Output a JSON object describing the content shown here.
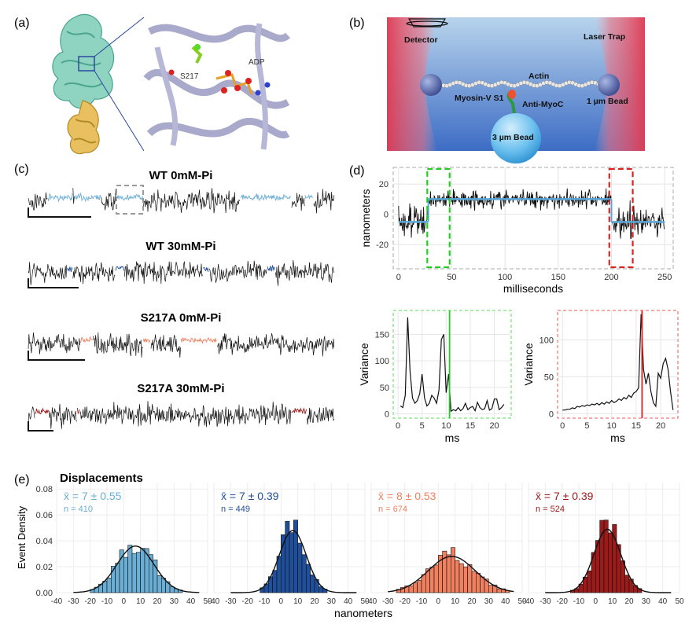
{
  "panels": {
    "a": {
      "label": "(a)",
      "ligand": "ADP",
      "residue": "S217"
    },
    "b": {
      "label": "(b)",
      "detector": "Detector",
      "laser_trap": "Laser Trap",
      "actin": "Actin",
      "myosin": "Myosin-V S1",
      "antibody": "Anti-MyoC",
      "small_bead": "1 µm Bead",
      "big_bead": "3 µm Bead"
    },
    "c": {
      "label": "(c)",
      "traces": [
        {
          "title": "WT 0mM-Pi",
          "color": "#6aaed6"
        },
        {
          "title": "WT 30mM-Pi",
          "color": "#1f4e9a"
        },
        {
          "title": "S217A 0mM-Pi",
          "color": "#f08060"
        },
        {
          "title": "S217A 30mM-Pi",
          "color": "#9c1a1a"
        }
      ]
    },
    "d": {
      "label": "(d)"
    },
    "e": {
      "label": "(e)",
      "title": "Displacements"
    }
  },
  "chart_data": [
    {
      "type": "line",
      "panel": "d-main",
      "xlabel": "milliseconds",
      "ylabel": "nanometers",
      "xticks": [
        0,
        50,
        100,
        150,
        200,
        250
      ],
      "yticks": [
        -20,
        0,
        20
      ],
      "xlim": [
        -5,
        258
      ],
      "ylim": [
        -36,
        31
      ],
      "grid": true,
      "fit_segments": [
        {
          "x": [
            0,
            28
          ],
          "y": -5
        },
        {
          "x": [
            28,
            200
          ],
          "y": 10
        },
        {
          "x": [
            200,
            250
          ],
          "y": -5
        }
      ],
      "highlight_boxes": [
        {
          "x": [
            27,
            48
          ],
          "color": "#22cc22"
        },
        {
          "x": [
            198,
            220
          ],
          "color": "#dd2222"
        }
      ]
    },
    {
      "type": "line",
      "panel": "d-variance-start",
      "xlabel": "ms",
      "ylabel": "Variance",
      "xticks": [
        0,
        5,
        10,
        15,
        20
      ],
      "yticks": [
        0,
        50,
        100,
        150
      ],
      "xlim": [
        -1,
        23.5
      ],
      "ylim": [
        -8,
        195
      ],
      "grid": true,
      "marker_x": 10.7,
      "marker_color": "#22cc22",
      "x": [
        0.5,
        1,
        1.5,
        2,
        2.5,
        3,
        3.5,
        4,
        4.5,
        5,
        5.5,
        6,
        6.5,
        7,
        7.5,
        8,
        8.5,
        9,
        9.5,
        10,
        10.5,
        11,
        11.5,
        12,
        12.5,
        13,
        13.5,
        14,
        14.5,
        15,
        15.5,
        16,
        16.5,
        17,
        17.5,
        18,
        18.5,
        19,
        19.5,
        20,
        20.5,
        21,
        21.5,
        22
      ],
      "y": [
        15,
        12,
        35,
        182,
        80,
        30,
        20,
        25,
        38,
        75,
        30,
        15,
        20,
        35,
        30,
        20,
        45,
        140,
        150,
        40,
        75,
        5,
        8,
        6,
        12,
        6,
        10,
        20,
        8,
        12,
        14,
        6,
        22,
        12,
        8,
        10,
        25,
        7,
        10,
        28,
        28,
        8,
        12,
        18
      ]
    },
    {
      "type": "line",
      "panel": "d-variance-end",
      "xlabel": "ms",
      "ylabel": "Variance",
      "xticks": [
        0,
        5,
        10,
        15,
        20
      ],
      "yticks": [
        0,
        50,
        100
      ],
      "xlim": [
        -1,
        23.5
      ],
      "ylim": [
        -6,
        140
      ],
      "grid": true,
      "marker_x": 16.2,
      "marker_color": "#dd2222",
      "x": [
        0,
        0.5,
        1,
        1.5,
        2,
        2.5,
        3,
        3.5,
        4,
        4.5,
        5,
        5.5,
        6,
        6.5,
        7,
        7.5,
        8,
        8.5,
        9,
        9.5,
        10,
        10.5,
        11,
        11.5,
        12,
        12.5,
        13,
        13.5,
        14,
        14.5,
        15,
        15.5,
        16,
        16.5,
        17,
        17.5,
        18,
        18.5,
        19,
        19.5,
        20,
        20.5,
        21,
        21.5,
        22,
        22.5
      ],
      "y": [
        5,
        5,
        6,
        6,
        8,
        7,
        10,
        9,
        11,
        10,
        12,
        11,
        13,
        12,
        14,
        12,
        15,
        13,
        16,
        14,
        18,
        15,
        17,
        20,
        18,
        22,
        20,
        25,
        22,
        28,
        30,
        35,
        135,
        60,
        40,
        55,
        30,
        15,
        10,
        55,
        48,
        68,
        75,
        60,
        30,
        5
      ]
    },
    {
      "type": "bar",
      "panel": "e",
      "title": "Displacements",
      "xlabel": "nanometers",
      "ylabel": "Event Density",
      "xticks": [
        -40,
        -30,
        -20,
        -10,
        0,
        10,
        20,
        30,
        40,
        50
      ],
      "yticks": [
        0.0,
        0.02,
        0.04,
        0.06,
        0.08
      ],
      "xlim": [
        -40,
        50
      ],
      "ylim": [
        0,
        0.085
      ],
      "bin_width": 2.5,
      "series": [
        {
          "name": "WT 0mM-Pi",
          "color": "#6aaed6",
          "stat": "x̄ = 7 ± 0.55",
          "n": "n = 410",
          "mean": 7,
          "sd": 11,
          "peak": 0.036
        },
        {
          "name": "WT 30mM-Pi",
          "color": "#1f4e9a",
          "stat": "x̄ = 7 ± 0.39",
          "n": "n = 449",
          "mean": 7,
          "sd": 8,
          "peak": 0.048
        },
        {
          "name": "S217A 0mM-Pi",
          "color": "#f08060",
          "stat": "x̄ = 8 ± 0.53",
          "n": "n = 674",
          "mean": 8,
          "sd": 14,
          "peak": 0.028
        },
        {
          "name": "S217A 30mM-Pi",
          "color": "#9c1a1a",
          "stat": "x̄ = 7 ± 0.39",
          "n": "n = 524",
          "mean": 7,
          "sd": 8,
          "peak": 0.049
        }
      ]
    }
  ]
}
